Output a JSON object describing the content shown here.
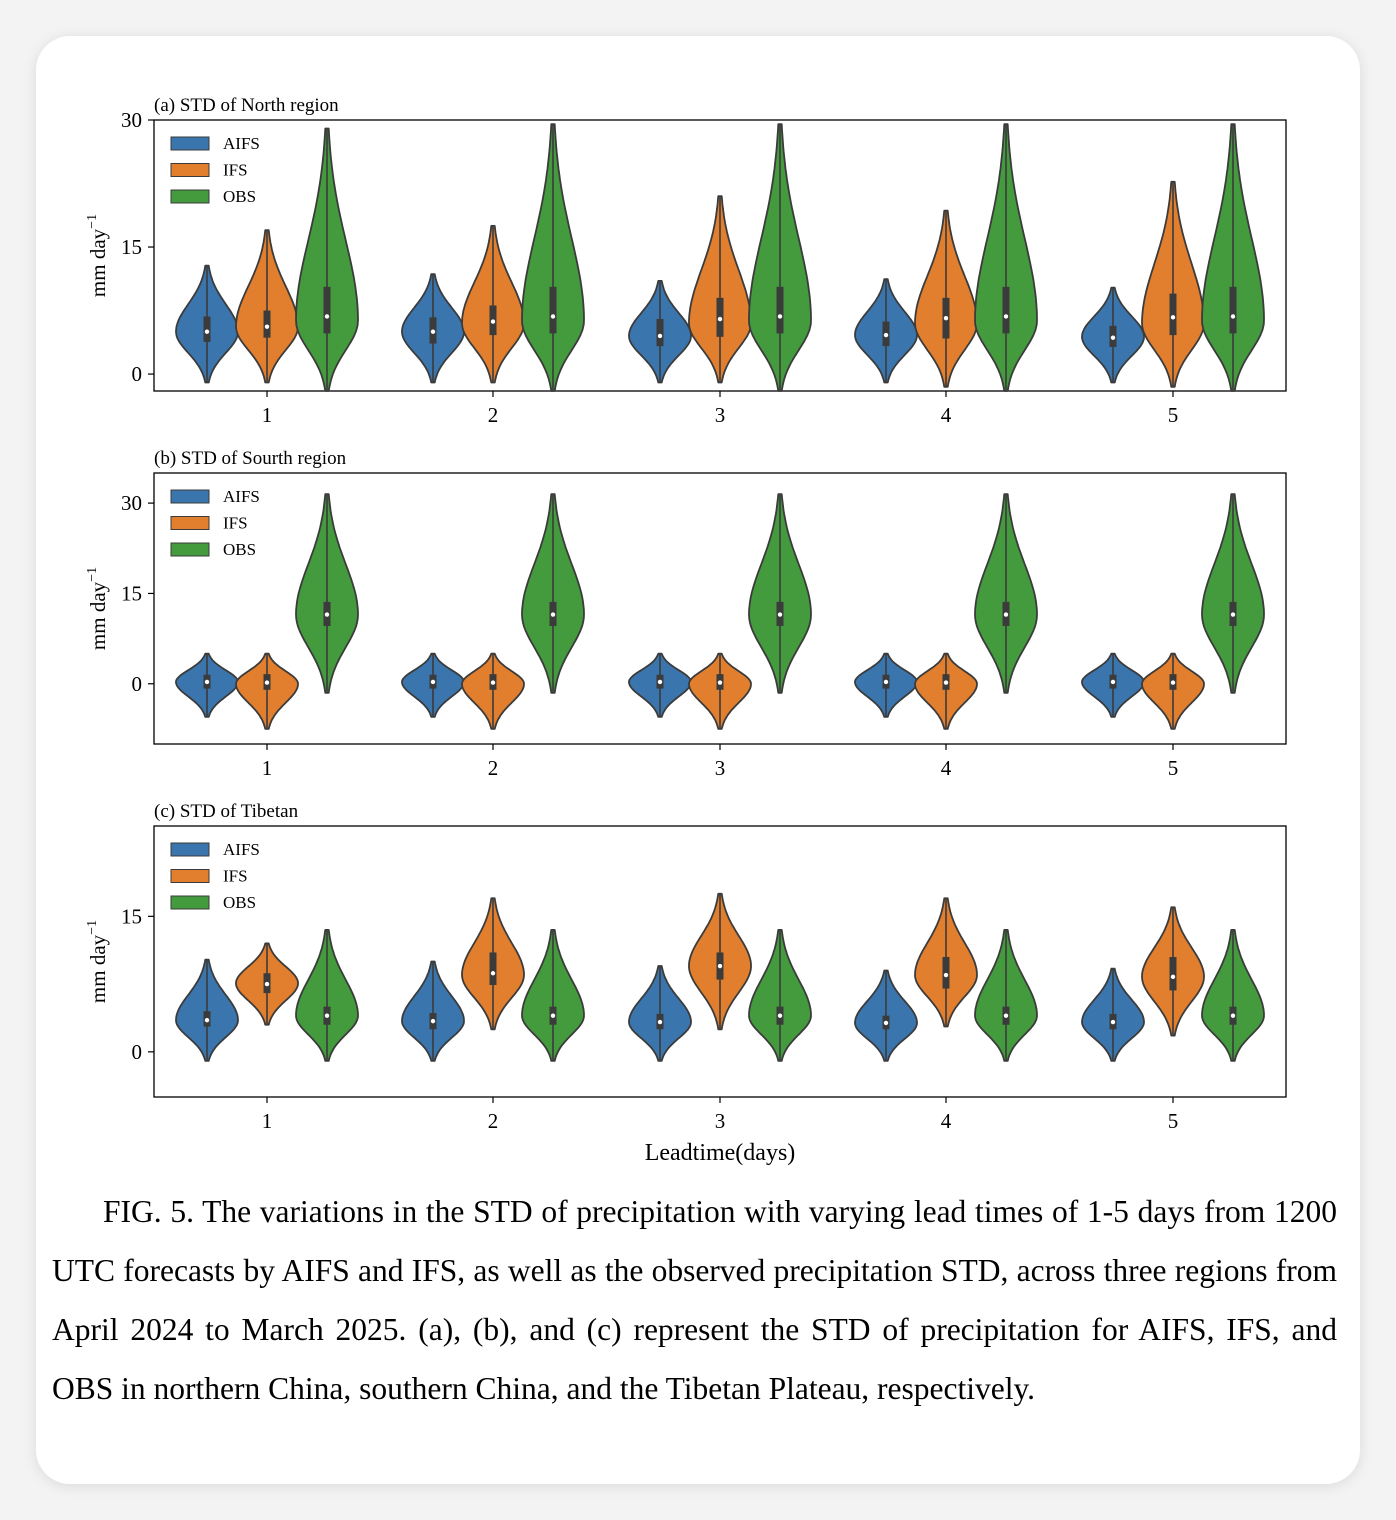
{
  "chart_data": [
    {
      "type": "violin",
      "title": "(a) STD of North region",
      "ylabel": "mm day",
      "ylabel_exponent": "−1",
      "ylim": [
        -2,
        30
      ],
      "yticks": [
        0,
        15,
        30
      ],
      "categories": [
        "1",
        "2",
        "3",
        "4",
        "5"
      ],
      "legend": {
        "position": "upper-left"
      },
      "series": [
        {
          "name": "AIFS",
          "color": "#3a76ad",
          "violins": [
            {
              "min": -1,
              "q1": 3.8,
              "median": 5.0,
              "q3": 6.8,
              "max": 12.8,
              "mode": 5.0
            },
            {
              "min": -1,
              "q1": 3.6,
              "median": 5.0,
              "q3": 6.7,
              "max": 11.8,
              "mode": 5.0
            },
            {
              "min": -1,
              "q1": 3.3,
              "median": 4.5,
              "q3": 6.5,
              "max": 11.0,
              "mode": 4.5
            },
            {
              "min": -1,
              "q1": 3.3,
              "median": 4.6,
              "q3": 6.2,
              "max": 11.2,
              "mode": 4.6
            },
            {
              "min": -1,
              "q1": 3.2,
              "median": 4.3,
              "q3": 5.7,
              "max": 10.2,
              "mode": 4.4
            }
          ]
        },
        {
          "name": "IFS",
          "color": "#e27f2e",
          "violins": [
            {
              "min": -1,
              "q1": 4.3,
              "median": 5.6,
              "q3": 7.5,
              "max": 17.0,
              "mode": 5.6
            },
            {
              "min": -1,
              "q1": 4.6,
              "median": 6.2,
              "q3": 8.1,
              "max": 17.5,
              "mode": 6.0
            },
            {
              "min": -1,
              "q1": 4.4,
              "median": 6.5,
              "q3": 9.0,
              "max": 21.0,
              "mode": 6.0
            },
            {
              "min": -1.5,
              "q1": 4.2,
              "median": 6.6,
              "q3": 9.0,
              "max": 19.3,
              "mode": 6.0
            },
            {
              "min": -1.5,
              "q1": 4.6,
              "median": 6.7,
              "q3": 9.5,
              "max": 22.7,
              "mode": 6.0
            }
          ]
        },
        {
          "name": "OBS",
          "color": "#439b3d",
          "violins": [
            {
              "min": -2,
              "q1": 4.8,
              "median": 6.8,
              "q3": 10.3,
              "max": 29.0,
              "mode": 6.3
            },
            {
              "min": -2,
              "q1": 4.8,
              "median": 6.8,
              "q3": 10.3,
              "max": 29.5,
              "mode": 6.3
            },
            {
              "min": -2,
              "q1": 4.8,
              "median": 6.8,
              "q3": 10.3,
              "max": 29.5,
              "mode": 6.3
            },
            {
              "min": -2,
              "q1": 4.8,
              "median": 6.8,
              "q3": 10.3,
              "max": 29.5,
              "mode": 6.3
            },
            {
              "min": -2,
              "q1": 4.8,
              "median": 6.8,
              "q3": 10.3,
              "max": 29.5,
              "mode": 6.3
            }
          ]
        }
      ]
    },
    {
      "type": "violin",
      "title": "(b) STD of Sourth region",
      "ylabel": "mm day",
      "ylabel_exponent": "−1",
      "ylim": [
        -10,
        35
      ],
      "yticks": [
        0,
        15,
        30
      ],
      "categories": [
        "1",
        "2",
        "3",
        "4",
        "5"
      ],
      "legend": {
        "position": "upper-left"
      },
      "series": [
        {
          "name": "AIFS",
          "color": "#3a76ad",
          "violins": [
            {
              "min": -5.5,
              "q1": -0.8,
              "median": 0.3,
              "q3": 1.5,
              "max": 5.0,
              "mode": 0.3
            },
            {
              "min": -5.5,
              "q1": -0.8,
              "median": 0.3,
              "q3": 1.5,
              "max": 5.0,
              "mode": 0.3
            },
            {
              "min": -5.5,
              "q1": -0.8,
              "median": 0.3,
              "q3": 1.5,
              "max": 5.0,
              "mode": 0.3
            },
            {
              "min": -5.5,
              "q1": -0.8,
              "median": 0.3,
              "q3": 1.5,
              "max": 5.0,
              "mode": 0.3
            },
            {
              "min": -5.5,
              "q1": -0.8,
              "median": 0.3,
              "q3": 1.5,
              "max": 5.0,
              "mode": 0.3
            }
          ]
        },
        {
          "name": "IFS",
          "color": "#e27f2e",
          "violins": [
            {
              "min": -7.5,
              "q1": -1.0,
              "median": 0.2,
              "q3": 1.6,
              "max": 5.0,
              "mode": 0.0
            },
            {
              "min": -7.5,
              "q1": -1.0,
              "median": 0.2,
              "q3": 1.6,
              "max": 5.0,
              "mode": 0.0
            },
            {
              "min": -7.5,
              "q1": -1.0,
              "median": 0.2,
              "q3": 1.6,
              "max": 5.0,
              "mode": 0.0
            },
            {
              "min": -7.5,
              "q1": -1.0,
              "median": 0.2,
              "q3": 1.6,
              "max": 5.0,
              "mode": 0.0
            },
            {
              "min": -7.5,
              "q1": -1.0,
              "median": 0.2,
              "q3": 1.6,
              "max": 5.0,
              "mode": 0.0
            }
          ]
        },
        {
          "name": "OBS",
          "color": "#439b3d",
          "violins": [
            {
              "min": -1.5,
              "q1": 9.6,
              "median": 11.5,
              "q3": 13.6,
              "max": 31.5,
              "mode": 11.5
            },
            {
              "min": -1.5,
              "q1": 9.6,
              "median": 11.5,
              "q3": 13.6,
              "max": 31.5,
              "mode": 11.5
            },
            {
              "min": -1.5,
              "q1": 9.6,
              "median": 11.5,
              "q3": 13.6,
              "max": 31.5,
              "mode": 11.5
            },
            {
              "min": -1.5,
              "q1": 9.6,
              "median": 11.5,
              "q3": 13.6,
              "max": 31.5,
              "mode": 11.5
            },
            {
              "min": -1.5,
              "q1": 9.6,
              "median": 11.5,
              "q3": 13.6,
              "max": 31.5,
              "mode": 11.5
            }
          ]
        }
      ]
    },
    {
      "type": "violin",
      "title": "(c) STD of Tibetan",
      "ylabel": "mm day",
      "ylabel_exponent": "−1",
      "ylim": [
        -5,
        25
      ],
      "yticks": [
        0,
        15
      ],
      "categories": [
        "1",
        "2",
        "3",
        "4",
        "5"
      ],
      "xlabel": "Leadtime(days)",
      "legend": {
        "position": "upper-left"
      },
      "series": [
        {
          "name": "AIFS",
          "color": "#3a76ad",
          "violins": [
            {
              "min": -1,
              "q1": 2.8,
              "median": 3.5,
              "q3": 4.5,
              "max": 10.2,
              "mode": 3.5
            },
            {
              "min": -1,
              "q1": 2.5,
              "median": 3.4,
              "q3": 4.3,
              "max": 10.0,
              "mode": 3.4
            },
            {
              "min": -1,
              "q1": 2.5,
              "median": 3.3,
              "q3": 4.2,
              "max": 9.5,
              "mode": 3.3
            },
            {
              "min": -1,
              "q1": 2.5,
              "median": 3.2,
              "q3": 4.0,
              "max": 9.0,
              "mode": 3.2
            },
            {
              "min": -1,
              "q1": 2.5,
              "median": 3.3,
              "q3": 4.2,
              "max": 9.2,
              "mode": 3.3
            }
          ]
        },
        {
          "name": "IFS",
          "color": "#e27f2e",
          "violins": [
            {
              "min": 3,
              "q1": 6.5,
              "median": 7.5,
              "q3": 8.7,
              "max": 12.0,
              "mode": 7.6
            },
            {
              "min": 2.5,
              "q1": 7.4,
              "median": 8.7,
              "q3": 11.0,
              "max": 17.0,
              "mode": 8.5
            },
            {
              "min": 2.5,
              "q1": 8.0,
              "median": 9.5,
              "q3": 11.0,
              "max": 17.5,
              "mode": 9.5
            },
            {
              "min": 2.8,
              "q1": 7.0,
              "median": 8.5,
              "q3": 10.5,
              "max": 17.0,
              "mode": 8.5
            },
            {
              "min": 1.8,
              "q1": 6.8,
              "median": 8.3,
              "q3": 10.5,
              "max": 16.0,
              "mode": 8.3
            }
          ]
        },
        {
          "name": "OBS",
          "color": "#439b3d",
          "violins": [
            {
              "min": -1,
              "q1": 3.0,
              "median": 4.0,
              "q3": 5.0,
              "max": 13.5,
              "mode": 4.0
            },
            {
              "min": -1,
              "q1": 3.0,
              "median": 4.0,
              "q3": 5.0,
              "max": 13.5,
              "mode": 4.0
            },
            {
              "min": -1,
              "q1": 3.0,
              "median": 4.0,
              "q3": 5.0,
              "max": 13.5,
              "mode": 4.0
            },
            {
              "min": -1,
              "q1": 3.0,
              "median": 4.0,
              "q3": 5.0,
              "max": 13.5,
              "mode": 4.0
            },
            {
              "min": -1,
              "q1": 3.0,
              "median": 4.0,
              "q3": 5.0,
              "max": 13.5,
              "mode": 4.0
            }
          ]
        }
      ]
    }
  ],
  "caption": "FIG. 5. The variations in the STD of precipitation with varying lead times of 1-5 days from 1200 UTC forecasts by AIFS and IFS, as well as the observed precipitation STD, across three regions from April 2024 to March 2025. (a), (b), and (c) represent the STD of precipitation for AIFS, IFS, and OBS in northern China, southern China, and the Tibetan Plateau, respectively."
}
